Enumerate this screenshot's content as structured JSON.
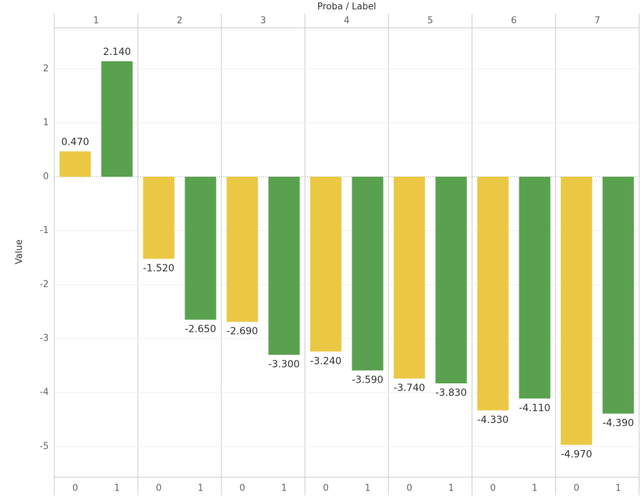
{
  "chart_data": {
    "type": "bar",
    "x_label": "Proba / Label",
    "y_label": "Value",
    "categories": [
      "1",
      "2",
      "3",
      "4",
      "5",
      "6",
      "7"
    ],
    "series": [
      {
        "name": "0",
        "color": "#EBC844",
        "values": [
          0.47,
          -1.52,
          -2.69,
          -3.24,
          -3.74,
          -4.33,
          -4.97
        ],
        "value_labels": [
          "0.470",
          "-1.520",
          "-2.690",
          "-3.240",
          "-3.740",
          "-4.330",
          "-4.970"
        ]
      },
      {
        "name": "1",
        "color": "#59A14F",
        "values": [
          2.14,
          -2.65,
          -3.3,
          -3.59,
          -3.83,
          -4.11,
          -4.39
        ],
        "value_labels": [
          "2.140",
          "-2.650",
          "-3.300",
          "-3.590",
          "-3.830",
          "-4.110",
          "-4.390"
        ]
      }
    ],
    "ylim": [
      -5.57,
      2.76
    ],
    "yticks": [
      2,
      1,
      0,
      -1,
      -2,
      -3,
      -4,
      -5
    ],
    "grid": true
  }
}
